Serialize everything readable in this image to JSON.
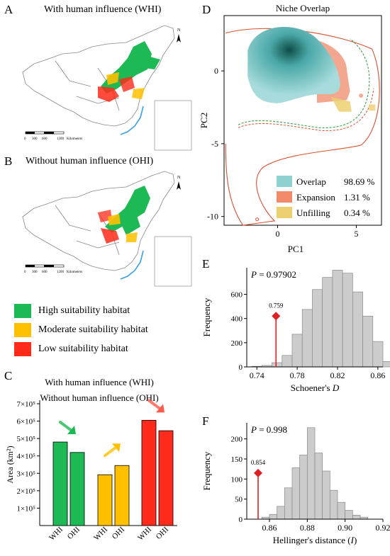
{
  "panels": {
    "A": {
      "letter": "A",
      "title": "With human influence (WHI)"
    },
    "B": {
      "letter": "B",
      "title": "Without human influence (OHI)"
    },
    "C": {
      "letter": "C"
    },
    "D": {
      "letter": "D"
    },
    "E": {
      "letter": "E"
    },
    "F": {
      "letter": "F"
    }
  },
  "map": {
    "north_label": "N",
    "scale_ticks": [
      "0",
      "300",
      "600",
      "1200"
    ],
    "scale_unit": "Kilometers"
  },
  "habitat_legend": [
    {
      "label": "High suitability habitat",
      "color": "#1db954"
    },
    {
      "label": "Moderate suitability habitat",
      "color": "#ffc000"
    },
    {
      "label": "Low suitability habitat",
      "color": "#ff2a1a"
    }
  ],
  "chart_data": [
    {
      "type": "bar",
      "panel": "C",
      "legend_lines": [
        "With human influence (WHI)",
        "Without human influence (OHI)"
      ],
      "ylabel": "Area (km²)",
      "y_ticks": [
        "1×10⁵",
        "2×10⁵",
        "3×10⁵",
        "4×10⁵",
        "5×10⁵",
        "6×10⁵",
        "7×10⁵"
      ],
      "ylim": [
        0,
        700000
      ],
      "groups": [
        {
          "name": "High",
          "color": "#1db954",
          "bars": [
            {
              "label": "WHI",
              "value": 480000
            },
            {
              "label": "OHI",
              "value": 420000
            }
          ]
        },
        {
          "name": "Moderate",
          "color": "#ffc000",
          "bars": [
            {
              "label": "WHI",
              "value": 292000
            },
            {
              "label": "OHI",
              "value": 345000
            }
          ]
        },
        {
          "name": "Low",
          "color": "#ff2a1a",
          "bars": [
            {
              "label": "WHI",
              "value": 605000
            },
            {
              "label": "OHI",
              "value": 545000
            }
          ]
        }
      ],
      "arrows": [
        {
          "group": "High",
          "direction": "down",
          "color": "#1db954"
        },
        {
          "group": "Moderate",
          "direction": "up",
          "color": "#ffc000"
        },
        {
          "group": "Low",
          "direction": "down",
          "color": "#ff5a4a"
        }
      ]
    },
    {
      "type": "scatter",
      "panel": "D",
      "title": "Niche Overlap",
      "xlabel": "PC1",
      "ylabel": "PC2",
      "xlim": [
        -3.4,
        6.6
      ],
      "ylim": [
        -10.6,
        3.8
      ],
      "x_ticks": [
        0,
        5
      ],
      "y_ticks": [
        0,
        -5,
        -10
      ],
      "legend": [
        {
          "label": "Overlap",
          "value": "98.69 %",
          "color": "#8fd0d0"
        },
        {
          "label": "Expansion",
          "value": "1.31 %",
          "color": "#f08a6a"
        },
        {
          "label": "Unfilling",
          "value": "0.34 %",
          "color": "#ecd070"
        }
      ],
      "boundary_color": "#d9502e",
      "inner_boundary_color": "#3da04a"
    },
    {
      "type": "bar",
      "panel": "E",
      "title": "",
      "xlabel": "Schoener's D",
      "ylabel": "Frequency",
      "p_label": "P = 0.97902",
      "xlim": [
        0.73,
        0.865
      ],
      "ylim": [
        0,
        820
      ],
      "x_ticks": [
        0.74,
        0.78,
        0.82,
        0.86
      ],
      "y_ticks": [
        0,
        200,
        400,
        600
      ],
      "bin_start": 0.735,
      "bin_width": 0.01,
      "counts": [
        5,
        12,
        35,
        95,
        270,
        475,
        640,
        740,
        800,
        775,
        620,
        420,
        210,
        45
      ],
      "observed": {
        "value": 0.759,
        "label": "0.759",
        "marker_y": 420
      }
    },
    {
      "type": "bar",
      "panel": "F",
      "title": "",
      "xlabel": "Hellinger's distance (I)",
      "ylabel": "Frequency",
      "p_label": "P = 0.998",
      "xlim": [
        0.848,
        0.92
      ],
      "ylim": [
        0,
        240
      ],
      "x_ticks": [
        0.86,
        0.88,
        0.9,
        0.92
      ],
      "y_ticks": [
        0,
        50,
        100,
        150,
        200
      ],
      "bin_start": 0.856,
      "bin_width": 0.004,
      "counts": [
        5,
        12,
        32,
        78,
        128,
        160,
        228,
        165,
        120,
        72,
        42,
        22,
        10,
        5
      ],
      "observed": {
        "value": 0.854,
        "label": "0.854",
        "marker_y": 115
      }
    }
  ]
}
